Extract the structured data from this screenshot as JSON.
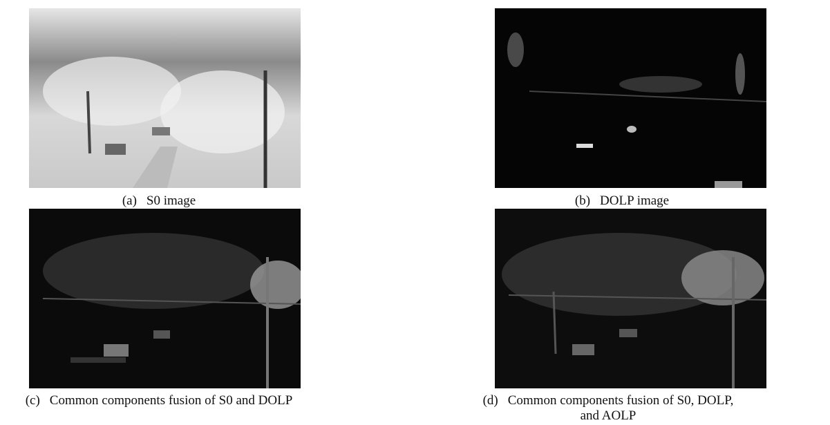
{
  "panels": [
    {
      "label": "(a)",
      "caption": "S0 image"
    },
    {
      "label": "(b)",
      "caption": "DOLP image"
    },
    {
      "label": "(c)",
      "caption": "Common components fusion of S0 and DOLP"
    },
    {
      "label": "(d)",
      "caption": "Common components fusion of S0, DOLP, and AOLP"
    }
  ]
}
